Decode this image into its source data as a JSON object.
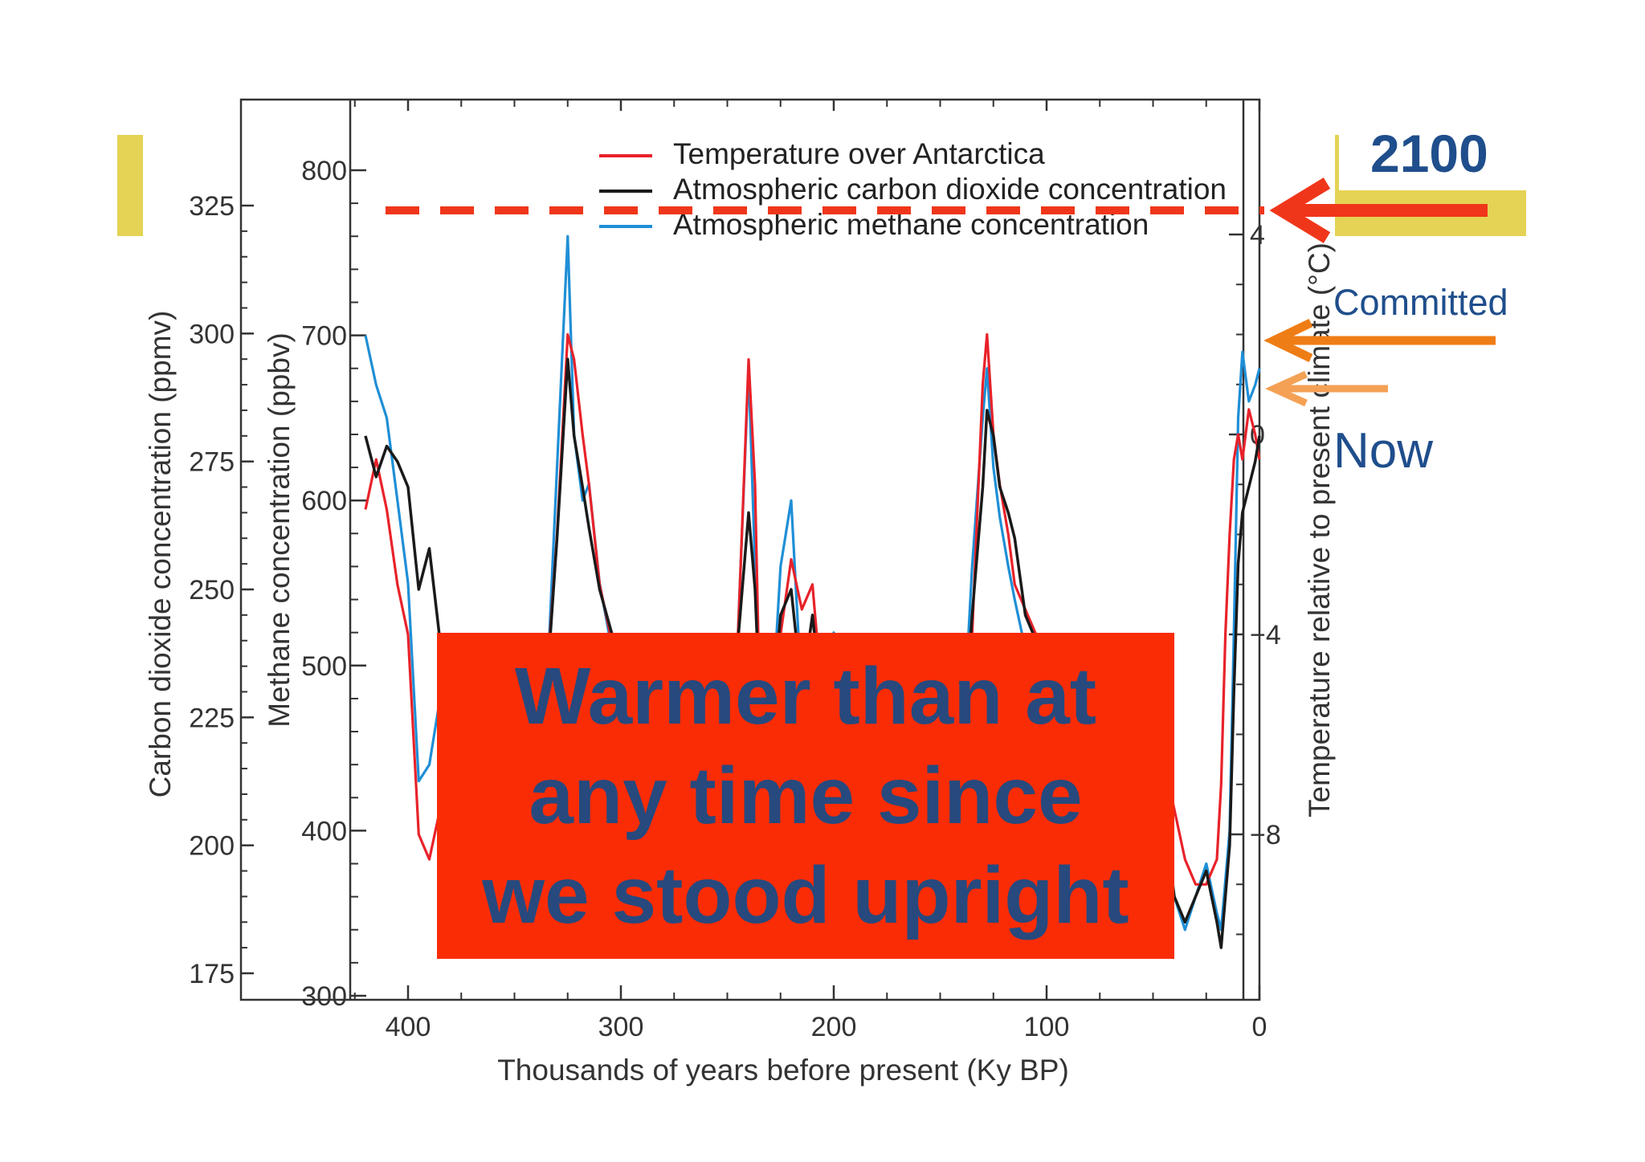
{
  "colors": {
    "temperature": "#e8222a",
    "co2": "#1a1a1a",
    "methane": "#1f8fd6",
    "banner_bg": "#fa2c06",
    "banner_text": "#27497e",
    "arrow_2100": "#f0361a",
    "arrow_committed": "#ef7d16",
    "arrow_now": "#f4a155",
    "decoration": "#e4d354",
    "annotation_text": "#1f4e8c"
  },
  "annotations": {
    "year_2100": "2100",
    "committed": "Committed",
    "now": "Now",
    "banner": "Warmer than at\nany time since\nwe stood upright"
  },
  "chart_data": {
    "type": "line",
    "title": "",
    "xlabel": "Thousands of years before present (Ky BP)",
    "xlim": [
      0,
      420
    ],
    "x_reversed": true,
    "x_ticks": [
      "400",
      "300",
      "200",
      "100",
      "0"
    ],
    "y_axes": [
      {
        "label": "Carbon dioxide concentration (ppmv)",
        "ticks": [
          "175",
          "200",
          "225",
          "250",
          "275",
          "300",
          "325"
        ]
      },
      {
        "label": "Methane concentration (ppbv)",
        "ticks": [
          "300",
          "400",
          "500",
          "600",
          "700",
          "800"
        ]
      },
      {
        "label": "Temperature relative to present climate (°C)",
        "ticks": [
          "−8",
          "−4",
          "0",
          "4"
        ]
      }
    ],
    "legend": [
      "Temperature over Antarctica",
      "Atmospheric carbon dioxide concentration",
      "Atmospheric methane concentration"
    ],
    "legend_position": "top",
    "series": [
      {
        "name": "Temperature over Antarctica",
        "axis": "temperature",
        "x": [
          420,
          415,
          410,
          405,
          400,
          395,
          390,
          385,
          380,
          375,
          370,
          360,
          350,
          340,
          335,
          330,
          325,
          322,
          318,
          315,
          310,
          300,
          290,
          280,
          270,
          260,
          250,
          245,
          240,
          237,
          235,
          230,
          225,
          220,
          215,
          210,
          205,
          200,
          195,
          190,
          185,
          180,
          170,
          160,
          150,
          140,
          135,
          130,
          128,
          125,
          122,
          118,
          115,
          110,
          105,
          100,
          95,
          90,
          85,
          80,
          75,
          70,
          65,
          60,
          55,
          50,
          45,
          40,
          35,
          30,
          25,
          20,
          18,
          16,
          14,
          12,
          10,
          8,
          5,
          2,
          0
        ],
        "y": [
          -1.5,
          -0.5,
          -1.5,
          -3,
          -4,
          -8,
          -8.5,
          -7.5,
          -6,
          -5,
          -4,
          -6,
          -8.5,
          -7.5,
          -5,
          -2,
          2,
          1.5,
          0,
          -1,
          -3,
          -5,
          -7,
          -8,
          -7.5,
          -7,
          -5,
          -4,
          1.5,
          -1,
          -5,
          -6.5,
          -4,
          -2.5,
          -3.5,
          -3,
          -5.5,
          -4,
          -6,
          -7.5,
          -8,
          -7,
          -6.5,
          -7.5,
          -8.5,
          -7.5,
          -4,
          1,
          2,
          0,
          -1,
          -2,
          -3,
          -3.5,
          -4,
          -4.5,
          -5,
          -4.5,
          -5,
          -6,
          -5.5,
          -5,
          -6,
          -5.5,
          -6.5,
          -7,
          -6.5,
          -7.5,
          -8.5,
          -9,
          -9,
          -8.5,
          -7,
          -4,
          -2,
          -0.5,
          0,
          -0.5,
          0.5,
          0,
          -0.5
        ]
      },
      {
        "name": "Atmospheric carbon dioxide concentration",
        "axis": "co2",
        "x": [
          420,
          415,
          410,
          405,
          400,
          395,
          390,
          385,
          380,
          375,
          370,
          360,
          350,
          340,
          335,
          330,
          325,
          322,
          318,
          315,
          310,
          300,
          290,
          280,
          270,
          260,
          250,
          245,
          240,
          237,
          235,
          230,
          225,
          220,
          215,
          210,
          205,
          200,
          195,
          190,
          185,
          180,
          170,
          160,
          150,
          140,
          135,
          130,
          128,
          125,
          122,
          118,
          115,
          110,
          105,
          100,
          95,
          90,
          85,
          80,
          75,
          70,
          65,
          60,
          55,
          50,
          45,
          40,
          35,
          30,
          25,
          20,
          18,
          16,
          14,
          12,
          10,
          8,
          5,
          2,
          0
        ],
        "y": [
          280,
          272,
          278,
          275,
          270,
          250,
          258,
          240,
          235,
          230,
          228,
          225,
          215,
          205,
          230,
          260,
          295,
          280,
          270,
          262,
          250,
          235,
          225,
          210,
          205,
          210,
          230,
          240,
          265,
          250,
          230,
          220,
          245,
          250,
          230,
          245,
          225,
          220,
          210,
          200,
          195,
          205,
          210,
          200,
          195,
          215,
          245,
          270,
          285,
          280,
          270,
          265,
          260,
          245,
          240,
          230,
          225,
          220,
          225,
          215,
          220,
          210,
          215,
          205,
          210,
          200,
          205,
          190,
          185,
          190,
          195,
          185,
          180,
          190,
          200,
          230,
          255,
          265,
          270,
          275,
          280
        ]
      },
      {
        "name": "Atmospheric methane concentration",
        "axis": "methane",
        "x": [
          420,
          415,
          410,
          405,
          400,
          395,
          390,
          385,
          380,
          375,
          370,
          360,
          350,
          340,
          335,
          330,
          325,
          322,
          318,
          315,
          310,
          300,
          290,
          280,
          270,
          260,
          250,
          245,
          240,
          237,
          235,
          230,
          225,
          220,
          215,
          210,
          205,
          200,
          195,
          190,
          185,
          180,
          170,
          160,
          150,
          140,
          135,
          130,
          128,
          125,
          122,
          118,
          115,
          110,
          105,
          100,
          95,
          90,
          85,
          80,
          75,
          70,
          65,
          60,
          55,
          50,
          45,
          40,
          35,
          30,
          25,
          20,
          18,
          16,
          14,
          12,
          10,
          8,
          5,
          2,
          0
        ],
        "y": [
          700,
          670,
          650,
          600,
          550,
          430,
          440,
          480,
          470,
          450,
          430,
          450,
          400,
          380,
          480,
          620,
          760,
          640,
          600,
          610,
          550,
          480,
          430,
          380,
          380,
          410,
          480,
          520,
          680,
          560,
          470,
          450,
          560,
          600,
          480,
          500,
          470,
          520,
          450,
          410,
          390,
          430,
          440,
          420,
          400,
          440,
          560,
          650,
          680,
          620,
          590,
          560,
          540,
          510,
          490,
          450,
          440,
          470,
          460,
          420,
          420,
          410,
          420,
          380,
          400,
          380,
          420,
          360,
          340,
          360,
          380,
          350,
          340,
          370,
          400,
          520,
          650,
          690,
          660,
          670,
          680
        ]
      }
    ]
  }
}
